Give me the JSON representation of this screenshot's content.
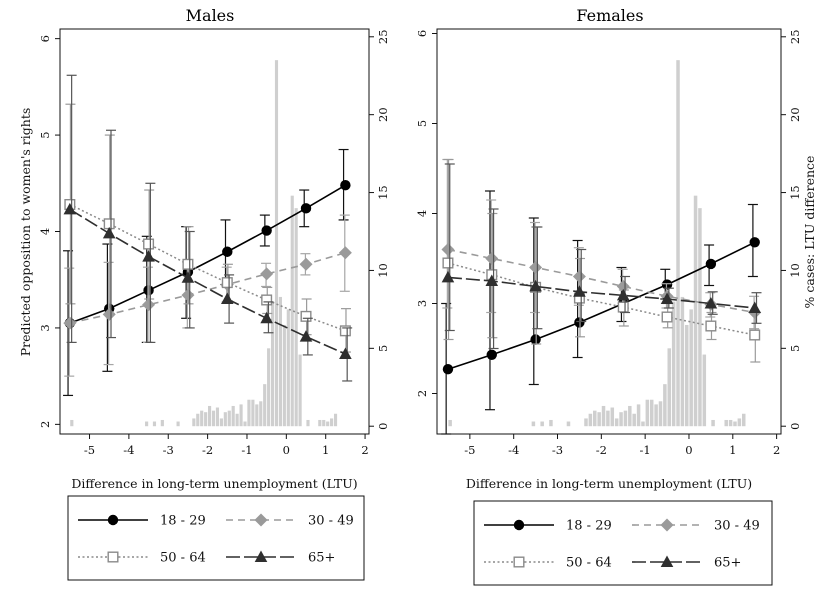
{
  "chart_data": [
    {
      "type": "line",
      "title": "Males",
      "xlabel": "Difference in long-term unemployment (LTU)",
      "ylabel": "Predicted opposition to women's rights",
      "y2label": "",
      "xlim": [
        -5.75,
        2.1
      ],
      "xticks": [
        -5,
        -4,
        -3,
        -2,
        -1,
        0,
        1,
        2
      ],
      "ylim": [
        1.9,
        6.1
      ],
      "yticks": [
        2,
        3,
        4,
        5,
        6
      ],
      "y2lim": [
        -0.5,
        25.5
      ],
      "y2ticks": [
        0,
        5,
        10,
        15,
        20,
        25
      ],
      "x": [
        -5.5,
        -4.5,
        -3.5,
        -2.5,
        -1.5,
        -0.5,
        0.5,
        1.5
      ],
      "series": [
        {
          "name": "18 - 29",
          "style": "solid",
          "marker": "circle",
          "values": [
            3.05,
            3.2,
            3.39,
            3.58,
            3.79,
            4.01,
            4.24,
            4.48
          ],
          "ci_low": [
            2.3,
            2.55,
            2.85,
            3.1,
            3.45,
            3.85,
            4.05,
            4.12
          ],
          "ci_high": [
            3.8,
            3.87,
            3.95,
            4.05,
            4.12,
            4.17,
            4.43,
            4.85
          ]
        },
        {
          "name": "30 - 49",
          "style": "dashed",
          "marker": "diamond",
          "values": [
            3.05,
            3.14,
            3.24,
            3.34,
            3.45,
            3.56,
            3.66,
            3.78
          ],
          "ci_low": [
            2.5,
            2.62,
            2.85,
            3.0,
            3.27,
            3.43,
            3.55,
            3.38
          ],
          "ci_high": [
            3.62,
            3.68,
            3.63,
            3.68,
            3.63,
            3.67,
            3.77,
            4.17
          ]
        },
        {
          "name": "50 - 64",
          "style": "dotted",
          "marker": "square",
          "values": [
            4.28,
            4.08,
            3.87,
            3.66,
            3.47,
            3.29,
            3.12,
            2.97
          ],
          "ci_low": [
            3.25,
            3.15,
            3.3,
            3.25,
            3.28,
            3.15,
            2.93,
            2.75
          ],
          "ci_high": [
            5.32,
            5.0,
            4.43,
            4.05,
            3.66,
            3.42,
            3.3,
            3.2
          ]
        },
        {
          "name": "65+",
          "style": "longdash",
          "marker": "triangle",
          "values": [
            4.23,
            3.98,
            3.74,
            3.52,
            3.3,
            3.1,
            2.91,
            2.73
          ],
          "ci_low": [
            2.85,
            2.9,
            2.85,
            3.0,
            3.05,
            2.95,
            2.72,
            2.45
          ],
          "ci_high": [
            5.62,
            5.05,
            4.5,
            4.0,
            3.55,
            3.27,
            3.1,
            3.0
          ]
        }
      ],
      "histogram": {
        "bin_width": 0.1,
        "x": [
          -5.45,
          -3.55,
          -3.35,
          -3.15,
          -2.75,
          -2.35,
          -2.25,
          -2.15,
          -2.05,
          -1.95,
          -1.85,
          -1.75,
          -1.65,
          -1.55,
          -1.45,
          -1.35,
          -1.25,
          -1.15,
          -1.05,
          -0.95,
          -0.85,
          -0.75,
          -0.65,
          -0.55,
          -0.45,
          -0.35,
          -0.25,
          -0.15,
          -0.05,
          0.05,
          0.15,
          0.25,
          0.35,
          0.55,
          0.85,
          0.95,
          1.05,
          1.15,
          1.25
        ],
        "values": [
          0.4,
          0.3,
          0.3,
          0.4,
          0.3,
          0.5,
          0.8,
          1.0,
          0.9,
          1.3,
          1.0,
          1.2,
          0.5,
          0.9,
          1.0,
          1.3,
          0.8,
          1.4,
          0.3,
          1.7,
          1.7,
          1.4,
          1.6,
          2.7,
          5.0,
          8.0,
          23.5,
          8.3,
          6.5,
          7.5,
          14.8,
          14.0,
          4.6,
          0.4,
          0.4,
          0.4,
          0.3,
          0.5,
          0.8
        ]
      },
      "legend": {
        "placement": "bottom",
        "columns": 2
      }
    },
    {
      "type": "line",
      "title": "Females",
      "xlabel": "Difference in long-term unemployment (LTU)",
      "ylabel": "",
      "y2label": "% cases: LTU difference",
      "xlim": [
        -5.75,
        2.1
      ],
      "xticks": [
        -5,
        -4,
        -3,
        -2,
        -1,
        0,
        1,
        2
      ],
      "ylim": [
        1.55,
        6.05
      ],
      "yticks": [
        2,
        3,
        4,
        5,
        6
      ],
      "y2lim": [
        -0.5,
        25.5
      ],
      "y2ticks": [
        0,
        5,
        10,
        15,
        20,
        25
      ],
      "x": [
        -5.5,
        -4.5,
        -3.5,
        -2.5,
        -1.5,
        -0.5,
        0.5,
        1.5
      ],
      "series": [
        {
          "name": "18 - 29",
          "style": "solid",
          "marker": "circle",
          "values": [
            2.27,
            2.43,
            2.6,
            2.79,
            3.0,
            3.21,
            3.44,
            3.68
          ],
          "ci_low": [
            1.55,
            1.82,
            2.1,
            2.4,
            2.8,
            3.05,
            3.2,
            3.3
          ],
          "ci_high": [
            3.0,
            4.25,
            3.95,
            3.7,
            3.4,
            3.38,
            3.65,
            4.1
          ]
        },
        {
          "name": "30 - 49",
          "style": "dashed",
          "marker": "diamond",
          "values": [
            3.6,
            3.5,
            3.4,
            3.3,
            3.19,
            3.08,
            2.99,
            2.9
          ],
          "ci_low": [
            2.95,
            2.9,
            2.9,
            2.98,
            3.0,
            2.95,
            2.85,
            2.72
          ],
          "ci_high": [
            4.6,
            4.15,
            3.9,
            3.62,
            3.38,
            3.22,
            3.12,
            3.08
          ]
        },
        {
          "name": "50 - 64",
          "style": "dotted",
          "marker": "square",
          "values": [
            3.45,
            3.32,
            3.18,
            3.06,
            2.96,
            2.85,
            2.75,
            2.65
          ],
          "ci_low": [
            2.6,
            2.62,
            2.55,
            2.63,
            2.75,
            2.73,
            2.6,
            2.35
          ],
          "ci_high": [
            4.6,
            4.0,
            3.85,
            3.5,
            3.15,
            3.0,
            2.9,
            2.9
          ]
        },
        {
          "name": "65+",
          "style": "longdash",
          "marker": "triangle",
          "values": [
            3.29,
            3.25,
            3.19,
            3.13,
            3.09,
            3.05,
            3.0,
            2.95
          ],
          "ci_low": [
            2.7,
            2.5,
            2.72,
            2.8,
            2.9,
            2.95,
            2.88,
            2.78
          ],
          "ci_high": [
            4.55,
            4.05,
            3.85,
            3.6,
            3.3,
            3.17,
            3.13,
            3.12
          ]
        }
      ],
      "histogram": {
        "bin_width": 0.1,
        "x": [
          -5.45,
          -3.55,
          -3.35,
          -3.15,
          -2.75,
          -2.35,
          -2.25,
          -2.15,
          -2.05,
          -1.95,
          -1.85,
          -1.75,
          -1.65,
          -1.55,
          -1.45,
          -1.35,
          -1.25,
          -1.15,
          -1.05,
          -0.95,
          -0.85,
          -0.75,
          -0.65,
          -0.55,
          -0.45,
          -0.35,
          -0.25,
          -0.15,
          -0.05,
          0.05,
          0.15,
          0.25,
          0.35,
          0.55,
          0.85,
          0.95,
          1.05,
          1.15,
          1.25
        ],
        "values": [
          0.4,
          0.3,
          0.3,
          0.4,
          0.3,
          0.5,
          0.8,
          1.0,
          0.9,
          1.3,
          1.0,
          1.2,
          0.5,
          0.9,
          1.0,
          1.3,
          0.8,
          1.4,
          0.3,
          1.7,
          1.7,
          1.4,
          1.6,
          2.7,
          5.0,
          8.0,
          23.5,
          8.3,
          6.5,
          7.5,
          14.8,
          14.0,
          4.6,
          0.4,
          0.4,
          0.4,
          0.3,
          0.5,
          0.8
        ]
      },
      "legend": {
        "placement": "bottom",
        "columns": 2
      }
    }
  ],
  "colors": {
    "series_18_29": "#000000",
    "series_30_49": "#9a9a9a",
    "series_50_64": "#8a8a8a",
    "series_65plus": "#2f2f2f",
    "ci_18_29": "#111111",
    "ci_30_49": "#a6a6a6",
    "ci_50_64": "#9a9a9a",
    "ci_65plus": "#555555",
    "histogram_bar": "#cfcfcf",
    "axis": "#111111"
  }
}
